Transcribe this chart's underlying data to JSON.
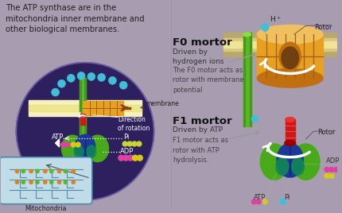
{
  "bg_color": "#a89cb0",
  "title_text": "The ATP synthase are in the\nmitochondria inner membrane and\nother biological membranes.",
  "title_fontsize": 7.2,
  "title_color": "#222222",
  "fo_title": "F0 mortor",
  "fo_sub": "Driven by\nhydrogen ions",
  "fo_desc": "The F0 motor acts as\nrotor with membrane\npotential",
  "f1_title": "F1 mortor",
  "f1_sub": "Driven by ATP",
  "f1_desc": "F1 motor acts as\nrotor with ATP\nhydrolysis.",
  "membrane_color_light": "#f5f0c0",
  "membrane_color": "#e8e070",
  "membrane_stripe": "#c8a840",
  "circle_bg": "#2e1f5e",
  "circle_border": "#7060a8",
  "fo_cylinder_color": "#e8a020",
  "fo_cylinder_dark": "#a06010",
  "fo_cylinder_shadow": "#c07010",
  "stalk_green": "#5ab828",
  "stalk_dark_green": "#3a8810",
  "rotor_red": "#cc1818",
  "rotor_red_top": "#ee3030",
  "f1_green": "#48aa18",
  "f1_blue": "#1c3898",
  "f1_teal": "#108858",
  "f1_blue_dark": "#102878",
  "mito_bg": "#c0dce8",
  "mito_border": "#4888aa",
  "mito_inner": "#5090aa",
  "h_ion_color": "#40c0d8",
  "h_ion_outline": "#208098",
  "pi_color": "#c8d830",
  "adp_pink": "#e040a0",
  "atp_yellow": "#d8c818",
  "white_arrow": "#ffffff",
  "dark_arrow": "#884400",
  "label_dark": "#222222",
  "label_mid": "#444444",
  "divider_color": "#888888"
}
